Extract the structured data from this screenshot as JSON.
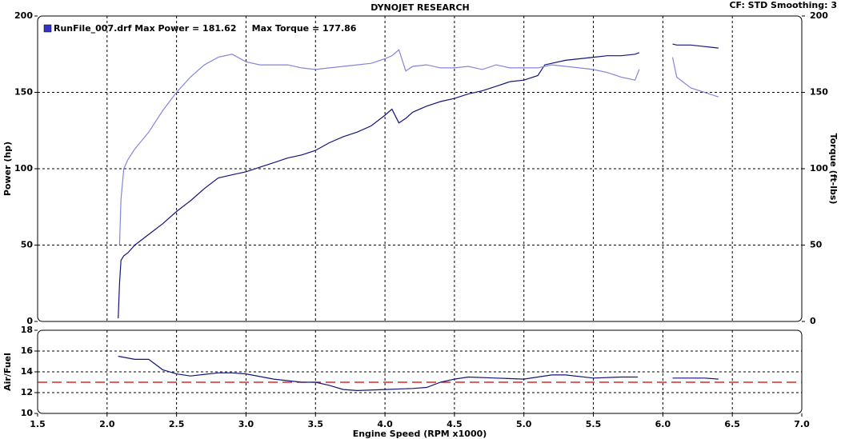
{
  "chart_data": [
    {
      "type": "line",
      "title": "DYNOJET RESEARCH",
      "annotation": "CF: STD  Smoothing: 3",
      "legend_text": "RunFile_007.drf Max Power = 181.62     Max Torque = 177.86",
      "legend_color": "#3333cc",
      "ylabel": "Power (hp)",
      "y2label": "Torque (ft-lbs)",
      "x": [
        2.08,
        2.09,
        2.1,
        2.12,
        2.15,
        2.2,
        2.3,
        2.4,
        2.5,
        2.6,
        2.7,
        2.8,
        2.9,
        3.0,
        3.1,
        3.2,
        3.3,
        3.4,
        3.5,
        3.6,
        3.7,
        3.8,
        3.9,
        4.0,
        4.05,
        4.1,
        4.15,
        4.2,
        4.3,
        4.4,
        4.5,
        4.6,
        4.7,
        4.8,
        4.9,
        5.0,
        5.1,
        5.15,
        5.2,
        5.3,
        5.4,
        5.5,
        5.6,
        5.7,
        5.8,
        5.83,
        5.95,
        6.07,
        6.1,
        6.2,
        6.3,
        6.4
      ],
      "series": [
        {
          "name": "Power",
          "color": "#14147a",
          "values": [
            2,
            25,
            40,
            43,
            45,
            50,
            57,
            64,
            72,
            79,
            87,
            94,
            96,
            98,
            101,
            104,
            107,
            109,
            112,
            117,
            121,
            124,
            128,
            135,
            139,
            130,
            133,
            137,
            141,
            144,
            146,
            149,
            151,
            154,
            157,
            158,
            161,
            168,
            169,
            171,
            172,
            173,
            174,
            174,
            175,
            176,
            null,
            181.62,
            181,
            181,
            180,
            179
          ]
        },
        {
          "name": "Torque",
          "color": "#8484dc",
          "axis": "y2",
          "values": [
            null,
            50,
            80,
            100,
            106,
            113,
            124,
            138,
            150,
            160,
            168,
            173,
            175,
            170,
            168,
            168,
            168,
            166,
            165,
            166,
            167,
            168,
            169,
            172,
            174,
            177.86,
            164,
            167,
            168,
            166,
            166,
            167,
            165,
            168,
            166,
            166,
            166,
            167,
            168,
            167,
            166,
            165,
            163,
            160,
            158,
            165,
            null,
            173,
            160,
            153,
            150,
            147
          ]
        }
      ],
      "xlim": [
        1.5,
        7.0
      ],
      "xticks": [
        1.5,
        2,
        2.5,
        3,
        3.5,
        4,
        4.5,
        5,
        5.5,
        6,
        6.5,
        7
      ],
      "ylim": [
        0,
        200
      ],
      "yticks": [
        0,
        50,
        100,
        150,
        200
      ],
      "y2lim": [
        0,
        200
      ],
      "y2ticks": [
        0,
        50,
        100,
        150,
        200
      ],
      "grid": true
    },
    {
      "type": "line",
      "ylabel": "Air/Fuel",
      "xlabel": "Engine Speed (RPM x1000)",
      "x": [
        2.08,
        2.2,
        2.3,
        2.4,
        2.5,
        2.6,
        2.8,
        2.9,
        3.0,
        3.2,
        3.4,
        3.5,
        3.6,
        3.7,
        3.8,
        4.0,
        4.2,
        4.3,
        4.4,
        4.5,
        4.6,
        4.8,
        5.0,
        5.2,
        5.3,
        5.5,
        5.7,
        5.82,
        5.95,
        6.07,
        6.3,
        6.4
      ],
      "series": [
        {
          "name": "Air/Fuel",
          "color": "#14147a",
          "values": [
            15.5,
            15.2,
            15.2,
            14.2,
            13.8,
            13.6,
            13.9,
            13.9,
            13.8,
            13.3,
            13.0,
            13.0,
            12.7,
            12.3,
            12.2,
            12.3,
            12.4,
            12.5,
            13.0,
            13.3,
            13.5,
            13.4,
            13.3,
            13.7,
            13.7,
            13.4,
            13.5,
            13.5,
            null,
            13.4,
            13.4,
            13.3
          ]
        }
      ],
      "ref_line": 13,
      "ref_color": "#cc0000",
      "xlim": [
        1.5,
        7.0
      ],
      "xticks": [
        1.5,
        {
          "value": 2,
          "label": "2.0"
        },
        2.5,
        {
          "value": 3,
          "label": "3.0"
        },
        3.5,
        {
          "value": 4,
          "label": "4.0"
        },
        4.5,
        {
          "value": 5,
          "label": "5.0"
        },
        5.5,
        {
          "value": 6,
          "label": "6.0"
        },
        6.5,
        {
          "value": 7,
          "label": "7.0"
        }
      ],
      "ylim": [
        10,
        18
      ],
      "yticks": [
        10,
        12,
        14,
        16,
        18
      ],
      "grid": true
    }
  ]
}
